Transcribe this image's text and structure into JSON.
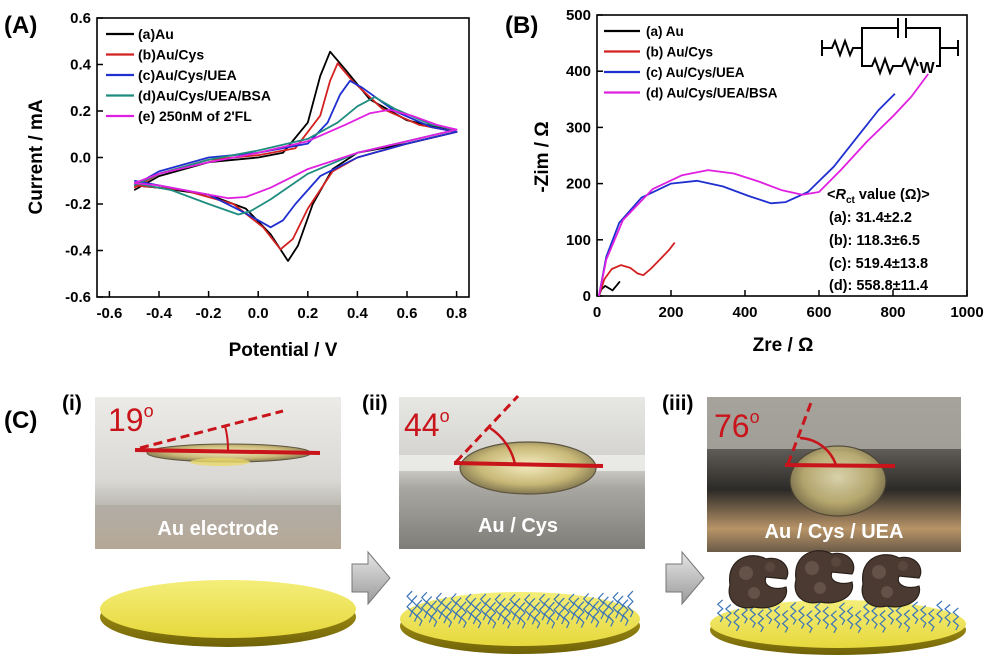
{
  "panel_labels": {
    "a": "(A)",
    "b": "(B)",
    "c": "(C)"
  },
  "chart_data": [
    {
      "type": "line",
      "panel": "(A)",
      "xlabel": "Potential / V",
      "ylabel": "Current / mA",
      "xlim": [
        -0.65,
        0.85
      ],
      "ylim": [
        -0.6,
        0.6
      ],
      "x_ticks": [
        -0.6,
        -0.4,
        -0.2,
        0.0,
        0.2,
        0.4,
        0.6,
        0.8
      ],
      "x_tick_labels": [
        "-0.6",
        "-0.4",
        "-0.2",
        "0.0",
        "0.2",
        "0.4",
        "0.6",
        "0.8"
      ],
      "y_ticks": [
        -0.6,
        -0.4,
        -0.2,
        0.0,
        0.2,
        0.4,
        0.6
      ],
      "y_tick_labels": [
        "-0.6",
        "-0.4",
        "-0.2",
        "0.0",
        "0.2",
        "0.4",
        "0.6"
      ],
      "legend_position": "top-left",
      "series": [
        {
          "name": "(a)Au",
          "color": "#000000",
          "oxidation": [
            [
              -0.5,
              -0.14
            ],
            [
              -0.4,
              -0.08
            ],
            [
              -0.2,
              -0.02
            ],
            [
              0.0,
              0.0
            ],
            [
              0.1,
              0.02
            ],
            [
              0.2,
              0.15
            ],
            [
              0.25,
              0.35
            ],
            [
              0.29,
              0.455
            ],
            [
              0.35,
              0.38
            ],
            [
              0.45,
              0.25
            ],
            [
              0.6,
              0.16
            ],
            [
              0.8,
              0.11
            ]
          ],
          "reduction": [
            [
              0.8,
              0.11
            ],
            [
              0.6,
              0.06
            ],
            [
              0.4,
              0.02
            ],
            [
              0.3,
              -0.05
            ],
            [
              0.22,
              -0.2
            ],
            [
              0.16,
              -0.38
            ],
            [
              0.12,
              -0.445
            ],
            [
              0.05,
              -0.33
            ],
            [
              -0.05,
              -0.22
            ],
            [
              -0.2,
              -0.16
            ],
            [
              -0.4,
              -0.13
            ],
            [
              -0.5,
              -0.12
            ]
          ]
        },
        {
          "name": "(b)Au/Cys",
          "color": "#d42020",
          "oxidation": [
            [
              -0.5,
              -0.13
            ],
            [
              -0.4,
              -0.07
            ],
            [
              -0.2,
              -0.01
            ],
            [
              0.0,
              0.01
            ],
            [
              0.15,
              0.04
            ],
            [
              0.25,
              0.18
            ],
            [
              0.29,
              0.33
            ],
            [
              0.32,
              0.405
            ],
            [
              0.38,
              0.33
            ],
            [
              0.5,
              0.21
            ],
            [
              0.65,
              0.14
            ],
            [
              0.8,
              0.11
            ]
          ],
          "reduction": [
            [
              0.8,
              0.11
            ],
            [
              0.6,
              0.06
            ],
            [
              0.4,
              0.0
            ],
            [
              0.3,
              -0.06
            ],
            [
              0.2,
              -0.22
            ],
            [
              0.14,
              -0.35
            ],
            [
              0.09,
              -0.395
            ],
            [
              0.02,
              -0.3
            ],
            [
              -0.1,
              -0.2
            ],
            [
              -0.3,
              -0.14
            ],
            [
              -0.5,
              -0.12
            ]
          ]
        },
        {
          "name": "(c)Au/Cys/UEA",
          "color": "#1f2fd0",
          "oxidation": [
            [
              -0.5,
              -0.12
            ],
            [
              -0.4,
              -0.06
            ],
            [
              -0.2,
              0.0
            ],
            [
              0.0,
              0.02
            ],
            [
              0.2,
              0.06
            ],
            [
              0.28,
              0.15
            ],
            [
              0.33,
              0.27
            ],
            [
              0.37,
              0.33
            ],
            [
              0.42,
              0.3
            ],
            [
              0.55,
              0.2
            ],
            [
              0.7,
              0.13
            ],
            [
              0.8,
              0.11
            ]
          ],
          "reduction": [
            [
              0.8,
              0.11
            ],
            [
              0.6,
              0.06
            ],
            [
              0.4,
              0.0
            ],
            [
              0.25,
              -0.08
            ],
            [
              0.15,
              -0.2
            ],
            [
              0.1,
              -0.27
            ],
            [
              0.05,
              -0.3
            ],
            [
              -0.05,
              -0.24
            ],
            [
              -0.2,
              -0.16
            ],
            [
              -0.5,
              -0.1
            ]
          ]
        },
        {
          "name": "(d)Au/Cys/UEA/BSA",
          "color": "#1f8c80",
          "oxidation": [
            [
              -0.5,
              -0.12
            ],
            [
              -0.4,
              -0.07
            ],
            [
              -0.2,
              -0.01
            ],
            [
              0.0,
              0.03
            ],
            [
              0.2,
              0.08
            ],
            [
              0.32,
              0.15
            ],
            [
              0.4,
              0.22
            ],
            [
              0.47,
              0.26
            ],
            [
              0.55,
              0.21
            ],
            [
              0.7,
              0.14
            ],
            [
              0.8,
              0.12
            ]
          ],
          "reduction": [
            [
              0.8,
              0.12
            ],
            [
              0.6,
              0.07
            ],
            [
              0.4,
              0.02
            ],
            [
              0.2,
              -0.07
            ],
            [
              0.05,
              -0.18
            ],
            [
              -0.03,
              -0.23
            ],
            [
              -0.08,
              -0.245
            ],
            [
              -0.2,
              -0.2
            ],
            [
              -0.35,
              -0.14
            ],
            [
              -0.5,
              -0.11
            ]
          ]
        },
        {
          "name": "(e) 250nM of 2'FL",
          "color": "#e020e0",
          "oxidation": [
            [
              -0.5,
              -0.11
            ],
            [
              -0.4,
              -0.07
            ],
            [
              -0.2,
              -0.02
            ],
            [
              0.0,
              0.02
            ],
            [
              0.2,
              0.07
            ],
            [
              0.35,
              0.14
            ],
            [
              0.45,
              0.19
            ],
            [
              0.53,
              0.205
            ],
            [
              0.62,
              0.18
            ],
            [
              0.72,
              0.14
            ],
            [
              0.8,
              0.12
            ]
          ],
          "reduction": [
            [
              0.8,
              0.12
            ],
            [
              0.6,
              0.07
            ],
            [
              0.4,
              0.02
            ],
            [
              0.2,
              -0.05
            ],
            [
              0.05,
              -0.13
            ],
            [
              -0.05,
              -0.17
            ],
            [
              -0.12,
              -0.175
            ],
            [
              -0.25,
              -0.15
            ],
            [
              -0.4,
              -0.12
            ],
            [
              -0.5,
              -0.11
            ]
          ]
        }
      ]
    },
    {
      "type": "line",
      "panel": "(B)",
      "xlabel": "Zre / Ω",
      "ylabel": "-Zim / Ω",
      "xlim": [
        0,
        1000
      ],
      "ylim": [
        0,
        500
      ],
      "x_ticks": [
        0,
        200,
        400,
        600,
        800,
        1000
      ],
      "x_tick_labels": [
        "0",
        "200",
        "400",
        "600",
        "800",
        "1000"
      ],
      "y_ticks": [
        0,
        100,
        200,
        300,
        400,
        500
      ],
      "y_tick_labels": [
        "0",
        "100",
        "200",
        "300",
        "400",
        "500"
      ],
      "legend_position": "top-left",
      "series": [
        {
          "name": "(a) Au",
          "color": "#000000",
          "points": [
            [
              5,
              0
            ],
            [
              12,
              12
            ],
            [
              22,
              18
            ],
            [
              32,
              14
            ],
            [
              42,
              10
            ],
            [
              52,
              18
            ],
            [
              62,
              26
            ]
          ]
        },
        {
          "name": "(b) Au/Cys",
          "color": "#d42020",
          "points": [
            [
              5,
              0
            ],
            [
              20,
              30
            ],
            [
              40,
              48
            ],
            [
              65,
              55
            ],
            [
              90,
              50
            ],
            [
              110,
              40
            ],
            [
              125,
              37
            ],
            [
              145,
              48
            ],
            [
              170,
              65
            ],
            [
              195,
              82
            ],
            [
              210,
              95
            ]
          ]
        },
        {
          "name": "(c) Au/Cys/UEA",
          "color": "#1f2fd0",
          "points": [
            [
              5,
              0
            ],
            [
              25,
              70
            ],
            [
              60,
              130
            ],
            [
              120,
              175
            ],
            [
              200,
              200
            ],
            [
              270,
              205
            ],
            [
              340,
              195
            ],
            [
              410,
              178
            ],
            [
              470,
              165
            ],
            [
              510,
              167
            ],
            [
              570,
              185
            ],
            [
              640,
              230
            ],
            [
              700,
              280
            ],
            [
              760,
              330
            ],
            [
              805,
              360
            ]
          ]
        },
        {
          "name": "(d) Au/Cys/UEA/BSA",
          "color": "#e020e0",
          "points": [
            [
              5,
              0
            ],
            [
              25,
              65
            ],
            [
              70,
              135
            ],
            [
              150,
              190
            ],
            [
              230,
              215
            ],
            [
              300,
              224
            ],
            [
              370,
              218
            ],
            [
              440,
              203
            ],
            [
              500,
              188
            ],
            [
              555,
              180
            ],
            [
              600,
              185
            ],
            [
              660,
              225
            ],
            [
              730,
              275
            ],
            [
              800,
              320
            ],
            [
              850,
              355
            ],
            [
              895,
              395
            ]
          ]
        }
      ],
      "circuit_label": "W",
      "rct_title_prefix": "<",
      "rct_symbol": "R",
      "rct_subscript": "ct",
      "rct_title_suffix": " value (Ω)>",
      "rct_values": [
        "(a): 31.4±2.2",
        "(b): 118.3±6.5",
        "(c): 519.4±13.8",
        "(d): 558.8±11.4"
      ]
    }
  ],
  "panel_c": {
    "steps": [
      {
        "roman": "(i)",
        "angle": "19",
        "degree": "o",
        "caption": "Au electrode"
      },
      {
        "roman": "(ii)",
        "angle": "44",
        "degree": "o",
        "caption": "Au / Cys"
      },
      {
        "roman": "(iii)",
        "angle": "76",
        "degree": "o",
        "caption": "Au / Cys / UEA"
      }
    ]
  },
  "colors": {
    "angle_red": "#c8141a",
    "gold": "#e8dc4a",
    "chain_blue": "#3a73b8",
    "protein": "#4a3a32"
  }
}
